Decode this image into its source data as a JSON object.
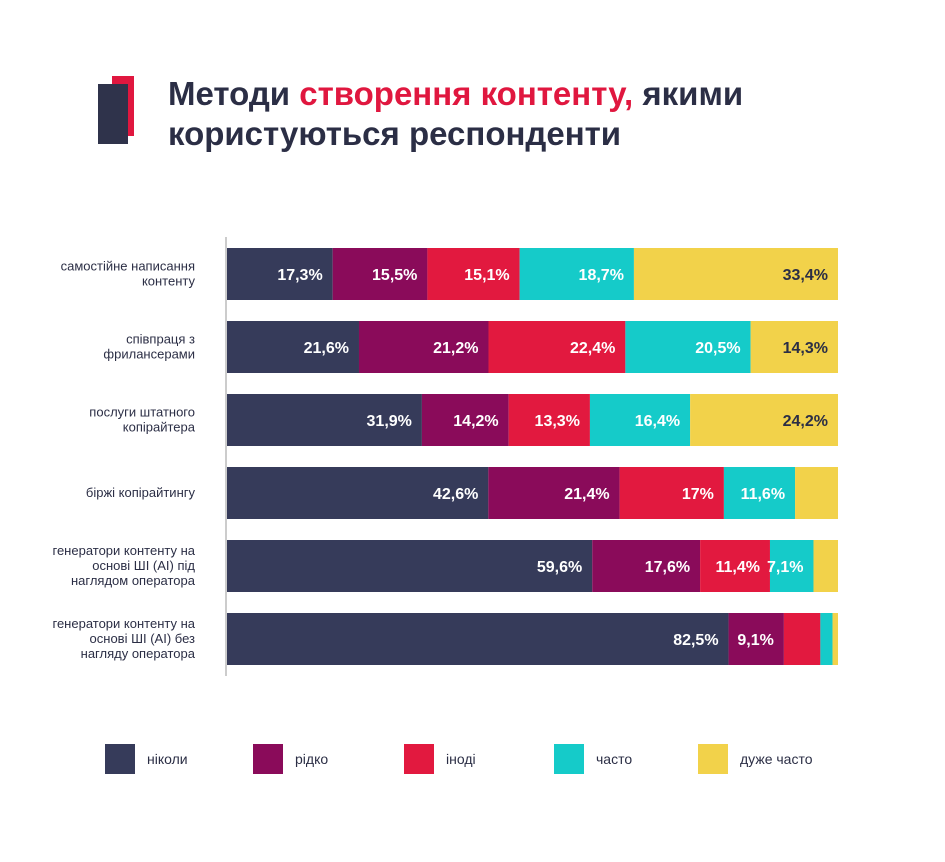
{
  "title": {
    "part1": "Методи ",
    "accent": "створення контенту,",
    "part2": " якими користуються респонденти"
  },
  "colors": {
    "never": "#363b5a",
    "rarely": "#8a0b5a",
    "sometimes": "#e2193f",
    "often": "#15cbc9",
    "very_often": "#f2d24a",
    "text_dark": "#2b2e45",
    "axis": "#9a9a9a"
  },
  "legend": [
    {
      "key": "never",
      "label": "ніколи"
    },
    {
      "key": "rarely",
      "label": "рідко"
    },
    {
      "key": "sometimes",
      "label": "іноді"
    },
    {
      "key": "often",
      "label": "часто"
    },
    {
      "key": "very_often",
      "label": "дуже часто"
    }
  ],
  "chart_data": {
    "type": "bar",
    "orientation": "horizontal",
    "stacked": true,
    "categories": [
      [
        "самостійне написання",
        "контенту"
      ],
      [
        "співпраця з",
        "фрилансерами"
      ],
      [
        "послуги штатного",
        "копірайтера"
      ],
      [
        "біржі копірайтингу"
      ],
      [
        "генератори контенту на",
        "основі ШІ (АІ) під",
        "наглядом оператора"
      ],
      [
        "генератори контенту на",
        "основі ШІ (АІ) без",
        "нагляду оператора"
      ]
    ],
    "series": [
      {
        "name": "ніколи",
        "key": "never",
        "values": [
          17.3,
          21.6,
          31.9,
          42.6,
          59.6,
          82.5
        ],
        "labels": [
          "17,3%",
          "21,6%",
          "31,9%",
          "42,6%",
          "59,6%",
          "82,5%"
        ]
      },
      {
        "name": "рідко",
        "key": "rarely",
        "values": [
          15.5,
          21.2,
          14.2,
          21.4,
          17.6,
          9.1
        ],
        "labels": [
          "15,5%",
          "21,2%",
          "14,2%",
          "21,4%",
          "17,6%",
          "9,1%"
        ]
      },
      {
        "name": "іноді",
        "key": "sometimes",
        "values": [
          15.1,
          22.4,
          13.3,
          17.0,
          11.4,
          6.0
        ],
        "labels": [
          "15,1%",
          "22,4%",
          "13,3%",
          "17%",
          "11,4%",
          ""
        ]
      },
      {
        "name": "часто",
        "key": "often",
        "values": [
          18.7,
          20.5,
          16.4,
          11.6,
          7.1,
          2.0
        ],
        "labels": [
          "18,7%",
          "20,5%",
          "16,4%",
          "11,6%",
          "7,1%",
          ""
        ]
      },
      {
        "name": "дуже часто",
        "key": "very_often",
        "values": [
          33.4,
          14.3,
          24.2,
          7.0,
          4.0,
          0.9
        ],
        "labels": [
          "33,4%",
          "14,3%",
          "24,2%",
          "",
          "",
          ""
        ]
      }
    ],
    "xlim": [
      0,
      100
    ],
    "grid": false,
    "legend_position": "bottom"
  }
}
